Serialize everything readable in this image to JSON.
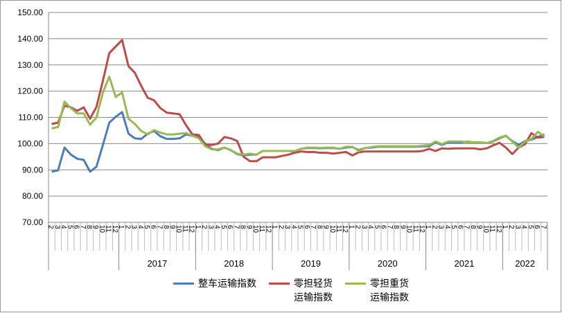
{
  "chart_data": {
    "type": "line",
    "groups": [
      {
        "label": null,
        "categories": [
          "2",
          "3",
          "4",
          "5",
          "6",
          "7",
          "8",
          "9",
          "10",
          "11",
          "12"
        ]
      },
      {
        "label": "2017",
        "categories": [
          "1",
          "2",
          "3",
          "4",
          "5",
          "6",
          "7",
          "8",
          "9",
          "10",
          "11",
          "12"
        ]
      },
      {
        "label": "2018",
        "categories": [
          "1",
          "2",
          "3",
          "4",
          "5",
          "6",
          "7",
          "8",
          "9",
          "10",
          "11",
          "12"
        ]
      },
      {
        "label": "2019",
        "categories": [
          "1",
          "2",
          "3",
          "4",
          "5",
          "6",
          "7",
          "8",
          "9",
          "10",
          "11",
          "12"
        ]
      },
      {
        "label": "2020",
        "categories": [
          "1",
          "2",
          "3",
          "4",
          "5",
          "6",
          "7",
          "8",
          "9",
          "10",
          "11",
          "12"
        ]
      },
      {
        "label": "2021",
        "categories": [
          "1",
          "2",
          "3",
          "4",
          "5",
          "6",
          "7",
          "8",
          "9",
          "10",
          "11",
          "12"
        ]
      },
      {
        "label": "2022",
        "categories": [
          "1",
          "2",
          "3",
          "4",
          "5",
          "6",
          "7"
        ]
      }
    ],
    "series": [
      {
        "name": "整车运输指数",
        "color": "#4a7ebb",
        "values": [
          89.3,
          89.8,
          98.5,
          95.8,
          94.2,
          93.8,
          89.3,
          91.2,
          99.5,
          108,
          110.2,
          112,
          103.8,
          102,
          101.8,
          103.8,
          104.8,
          102.8,
          101.8,
          101.8,
          102,
          103.5,
          103,
          102.5,
          100,
          98,
          97.5,
          98.5,
          97.5,
          96,
          95.5,
          95.8,
          95.8,
          97.2,
          97.2,
          97.2,
          97.2,
          97.2,
          97,
          98,
          98.3,
          98.3,
          98.2,
          98.3,
          98.3,
          98,
          98.5,
          98.7,
          97.5,
          98.3,
          98.5,
          98.8,
          98.8,
          98.8,
          98.8,
          98.8,
          98.8,
          98.8,
          99,
          99,
          100.5,
          99.5,
          100.5,
          100.5,
          100.5,
          100.7,
          100.5,
          100.5,
          100.2,
          100.8,
          102,
          103,
          101,
          99.5,
          101,
          101.5,
          102.5,
          103.5
        ]
      },
      {
        "name": "零担轻货\n运输指数",
        "color": "#be4b48",
        "values": [
          107.5,
          108,
          114.5,
          113.8,
          112.5,
          113.8,
          109.5,
          114,
          124,
          134.5,
          137,
          139.5,
          129.5,
          127,
          122,
          117.5,
          116.5,
          113.5,
          111.8,
          111.5,
          111.2,
          107,
          103.5,
          103.3,
          99.5,
          99.5,
          100,
          102.5,
          102,
          101,
          95,
          93.3,
          93.3,
          94.8,
          94.8,
          94.8,
          95.3,
          95.8,
          96.5,
          97,
          96.8,
          96.8,
          96.5,
          96.5,
          96.2,
          96.5,
          96.8,
          95.5,
          96.7,
          97,
          97,
          97,
          97,
          97,
          97,
          97,
          97,
          97,
          97.2,
          98,
          97.2,
          98.2,
          98,
          98.2,
          98.2,
          98.2,
          98.2,
          97.8,
          98.2,
          99.3,
          100.3,
          98.5,
          96,
          98.5,
          99.8,
          104,
          102.3,
          102.5
        ]
      },
      {
        "name": "零担重货\n运输指数",
        "color": "#98b954",
        "values": [
          105.8,
          106.3,
          116,
          113.5,
          111.5,
          111.5,
          107.2,
          110,
          119.5,
          125.5,
          117.8,
          119.5,
          109.5,
          107.5,
          104.8,
          103.5,
          105.2,
          104.2,
          103.5,
          103.5,
          103.8,
          104,
          103,
          102,
          99,
          97.8,
          97.8,
          98.5,
          97.5,
          96.2,
          95.8,
          96.2,
          95.8,
          97.2,
          97.2,
          97.2,
          97.2,
          97.2,
          97.2,
          98,
          98.5,
          98.5,
          98.3,
          98.5,
          98.5,
          98,
          98.8,
          98.8,
          97.2,
          98.3,
          98.7,
          99,
          99,
          99,
          99,
          99,
          99,
          99,
          99.2,
          99.5,
          100.8,
          99.8,
          100.8,
          100.8,
          100.8,
          100.5,
          100.5,
          100.5,
          100.2,
          101,
          102.3,
          103,
          100.8,
          98.5,
          100.8,
          101.8,
          104.5,
          102.8
        ]
      }
    ],
    "ylim": [
      70,
      150
    ],
    "yticks": [
      {
        "value": 70,
        "label": "70.00"
      },
      {
        "value": 80,
        "label": "80.00"
      },
      {
        "value": 90,
        "label": "90.00"
      },
      {
        "value": 100,
        "label": "100.00"
      },
      {
        "value": 110,
        "label": "110.00"
      },
      {
        "value": 120,
        "label": "120.00"
      },
      {
        "value": 130,
        "label": "130.00"
      },
      {
        "value": 140,
        "label": "140.00"
      },
      {
        "value": 150,
        "label": "150.00"
      }
    ],
    "grid": true
  }
}
